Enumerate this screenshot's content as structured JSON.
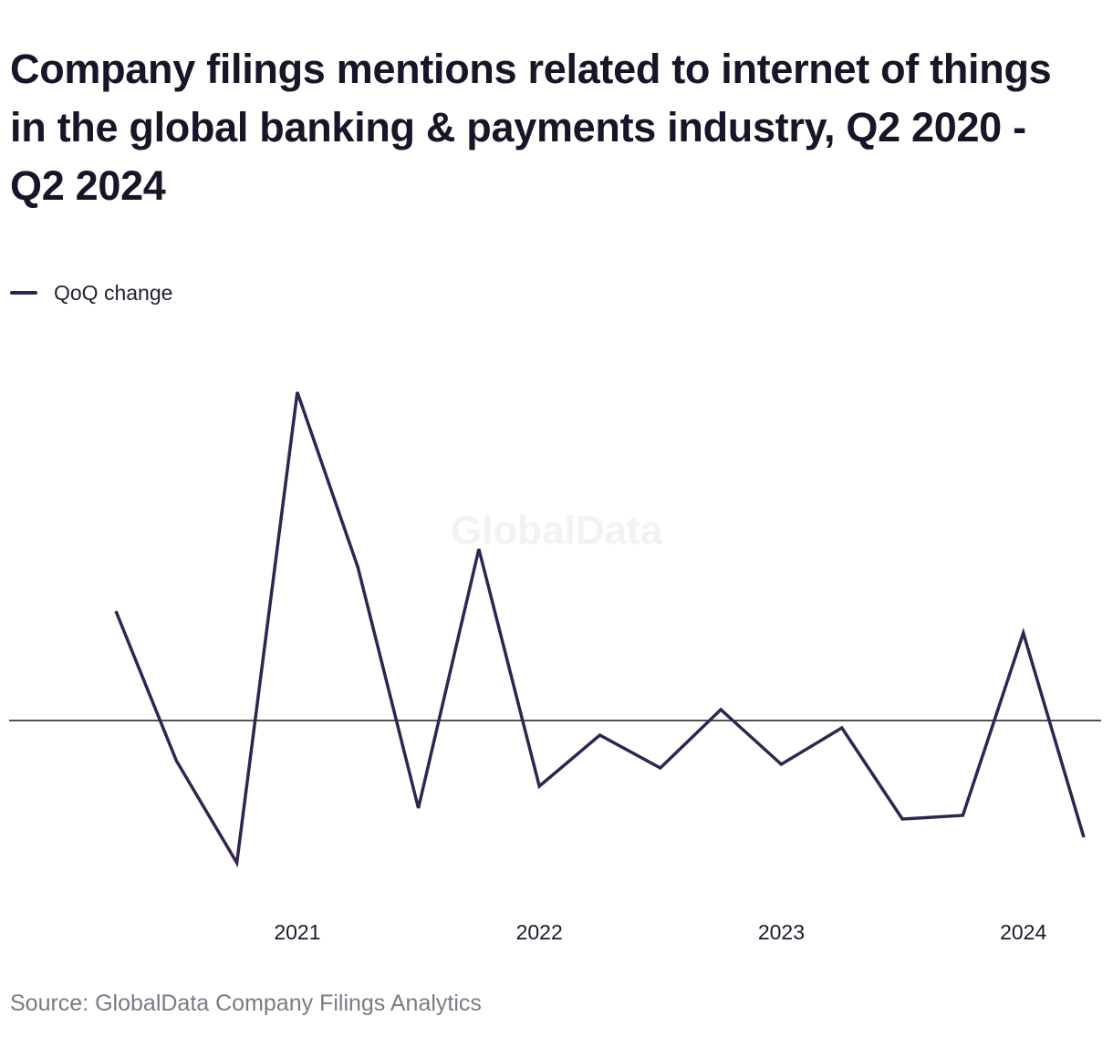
{
  "title": "Company filings mentions related to internet of things in the global banking & payments industry, Q2 2020 - Q2 2024",
  "legend": {
    "label": "QoQ change",
    "color": "#32244f"
  },
  "watermark": "GlobalData",
  "source": "Source: GlobalData Company Filings Analytics",
  "chart_data": {
    "type": "line",
    "title": "Company filings mentions related to internet of things in the global banking & payments industry, Q2 2020 - Q2 2024",
    "xlabel": "",
    "ylabel": "",
    "x": [
      "Q2 2020",
      "Q3 2020",
      "Q4 2020",
      "Q1 2021",
      "Q2 2021",
      "Q3 2021",
      "Q4 2021",
      "Q1 2022",
      "Q2 2022",
      "Q3 2022",
      "Q4 2022",
      "Q1 2023",
      "Q2 2023",
      "Q3 2023",
      "Q4 2023",
      "Q1 2024",
      "Q2 2024"
    ],
    "x_tick_labels": [
      {
        "label": "2021",
        "at": "Q1 2021"
      },
      {
        "label": "2022",
        "at": "Q1 2022"
      },
      {
        "label": "2023",
        "at": "Q1 2023"
      },
      {
        "label": "2024",
        "at": "Q1 2024"
      }
    ],
    "series": [
      {
        "name": "QoQ change",
        "color": "#32244f",
        "values": [
          0.3,
          -0.11,
          -0.39,
          0.9,
          0.42,
          -0.24,
          0.47,
          -0.18,
          -0.04,
          -0.13,
          0.03,
          -0.12,
          -0.02,
          -0.27,
          -0.26,
          0.24,
          -0.32
        ]
      }
    ],
    "ylim": [
      -0.5,
      1.0
    ],
    "zero_line": true,
    "y_axis_labels_shown": false,
    "grid": false
  }
}
